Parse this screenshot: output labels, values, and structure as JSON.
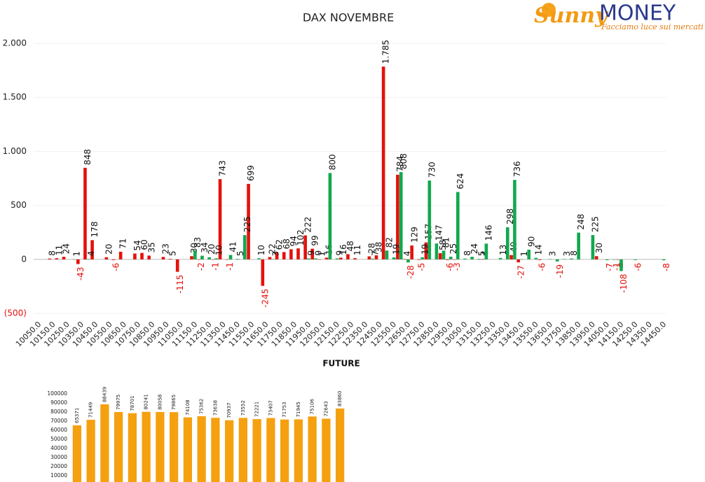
{
  "logo": {
    "brand_first": "Sunny",
    "brand_second": "MONEY",
    "tagline": "Facciamo luce sui mercati"
  },
  "chart_data": [
    {
      "type": "bar",
      "title": "DAX NOVEMBRE",
      "categories": [
        "10050.0",
        null,
        "10150.0",
        null,
        "10250.0",
        null,
        "10350.0",
        null,
        "10450.0",
        null,
        "10550.0",
        null,
        "10650.0",
        null,
        "10750.0",
        null,
        "10850.0",
        null,
        "10950.0",
        null,
        "11050.0",
        null,
        "11150.0",
        null,
        "11250.0",
        null,
        "11350.0",
        null,
        "11450.0",
        null,
        "11550.0",
        null,
        "11650.0",
        null,
        "11750.0",
        null,
        "11850.0",
        null,
        "11950.0",
        null,
        "12050.0",
        null,
        "12150.0",
        null,
        "12250.0",
        null,
        "12350.0",
        null,
        "12450.0",
        null,
        "12550.0",
        null,
        "12650.0",
        null,
        "12750.0",
        null,
        "12850.0",
        null,
        "12950.0",
        null,
        "13050.0",
        null,
        "13150.0",
        null,
        "13250.0",
        null,
        "13350.0",
        null,
        "13450.0",
        null,
        "13550.0",
        null,
        "13650.0",
        null,
        "13750.0",
        null,
        "13850.0",
        null,
        "13950.0",
        null,
        "14050.0",
        null,
        "14150.0",
        null,
        "14250.0",
        null,
        "14350.0",
        null,
        "14450.0"
      ],
      "series": [
        {
          "color": "#e3120b",
          "values": [
            null,
            null,
            8,
            11,
            24,
            null,
            -43,
            848,
            178,
            null,
            20,
            -6,
            71,
            null,
            54,
            60,
            35,
            null,
            23,
            5,
            -115,
            null,
            30,
            -2,
            null,
            -1,
            743,
            -1,
            null,
            null,
            699,
            null,
            -245,
            22,
            62,
            68,
            94,
            102,
            222,
            99,
            1,
            16,
            null,
            16,
            48,
            11,
            null,
            28,
            38,
            1785,
            null,
            784,
            4,
            129,
            -5,
            157,
            null,
            58,
            -6,
            -3,
            null,
            null,
            null,
            4,
            null,
            null,
            null,
            40,
            -27,
            null,
            null,
            -6,
            null,
            null,
            null,
            null,
            null,
            null,
            null,
            30,
            null,
            null,
            -1,
            null,
            null,
            null,
            null,
            null,
            null
          ],
          "value_labels": [
            null,
            null,
            "8",
            "11",
            "24",
            null,
            "-43",
            "848",
            "178",
            null,
            "20",
            "-6",
            "71",
            null,
            "54",
            "60",
            "35",
            null,
            "23",
            "5",
            "-115",
            null,
            "30",
            "-2",
            null,
            "-1",
            "743",
            "-1",
            null,
            null,
            "699",
            null,
            "-245",
            "22",
            "62",
            "68",
            "94",
            "102",
            "222",
            "99",
            "1",
            "16",
            null,
            "16",
            "48",
            "11",
            null,
            "28",
            "38",
            "1.785",
            null,
            "784",
            "4",
            "129",
            "-5",
            "157",
            null,
            "58",
            "-6",
            "-3",
            null,
            null,
            null,
            "4",
            null,
            null,
            null,
            "40",
            "-27",
            null,
            null,
            "-6",
            null,
            null,
            null,
            null,
            null,
            null,
            null,
            "30",
            null,
            null,
            "-1",
            null,
            null,
            null,
            null,
            null,
            null
          ]
        },
        {
          "color": "#12a84f",
          "values": [
            null,
            null,
            null,
            null,
            null,
            1,
            null,
            4,
            null,
            null,
            null,
            null,
            null,
            null,
            null,
            null,
            null,
            null,
            null,
            null,
            null,
            null,
            83,
            34,
            20,
            10,
            null,
            41,
            5,
            225,
            null,
            10,
            null,
            3,
            null,
            null,
            null,
            null,
            9,
            9,
            null,
            800,
            9,
            null,
            null,
            null,
            null,
            7,
            null,
            82,
            19,
            808,
            -28,
            null,
            19,
            730,
            147,
            81,
            25,
            624,
            8,
            24,
            5,
            146,
            null,
            13,
            298,
            736,
            1,
            90,
            14,
            null,
            3,
            -19,
            3,
            8,
            248,
            null,
            225,
            null,
            -7,
            -1,
            -108,
            null,
            -6,
            null,
            null,
            null,
            -8
          ]
        }
      ],
      "ylim": [
        -500,
        2000
      ],
      "yticks": [
        {
          "value": -500,
          "label": "(500)"
        },
        0,
        500,
        {
          "value": 1000,
          "label": "1.000"
        },
        {
          "value": 1500,
          "label": "1.500"
        },
        {
          "value": 2000,
          "label": "2.000"
        }
      ],
      "grid": true
    },
    {
      "type": "bar",
      "title": "FUTURE",
      "color": "#f5a00f",
      "values": [
        65371,
        71449,
        88439,
        79975,
        78701,
        80241,
        80058,
        79865,
        74108,
        75362,
        73638,
        70937,
        73552,
        72221,
        73407,
        71753,
        71945,
        75106,
        72643,
        83860
      ],
      "ylim": [
        3000,
        100000
      ],
      "yticks": [
        10000,
        20000,
        30000,
        40000,
        50000,
        60000,
        70000,
        80000,
        90000,
        100000
      ]
    }
  ]
}
